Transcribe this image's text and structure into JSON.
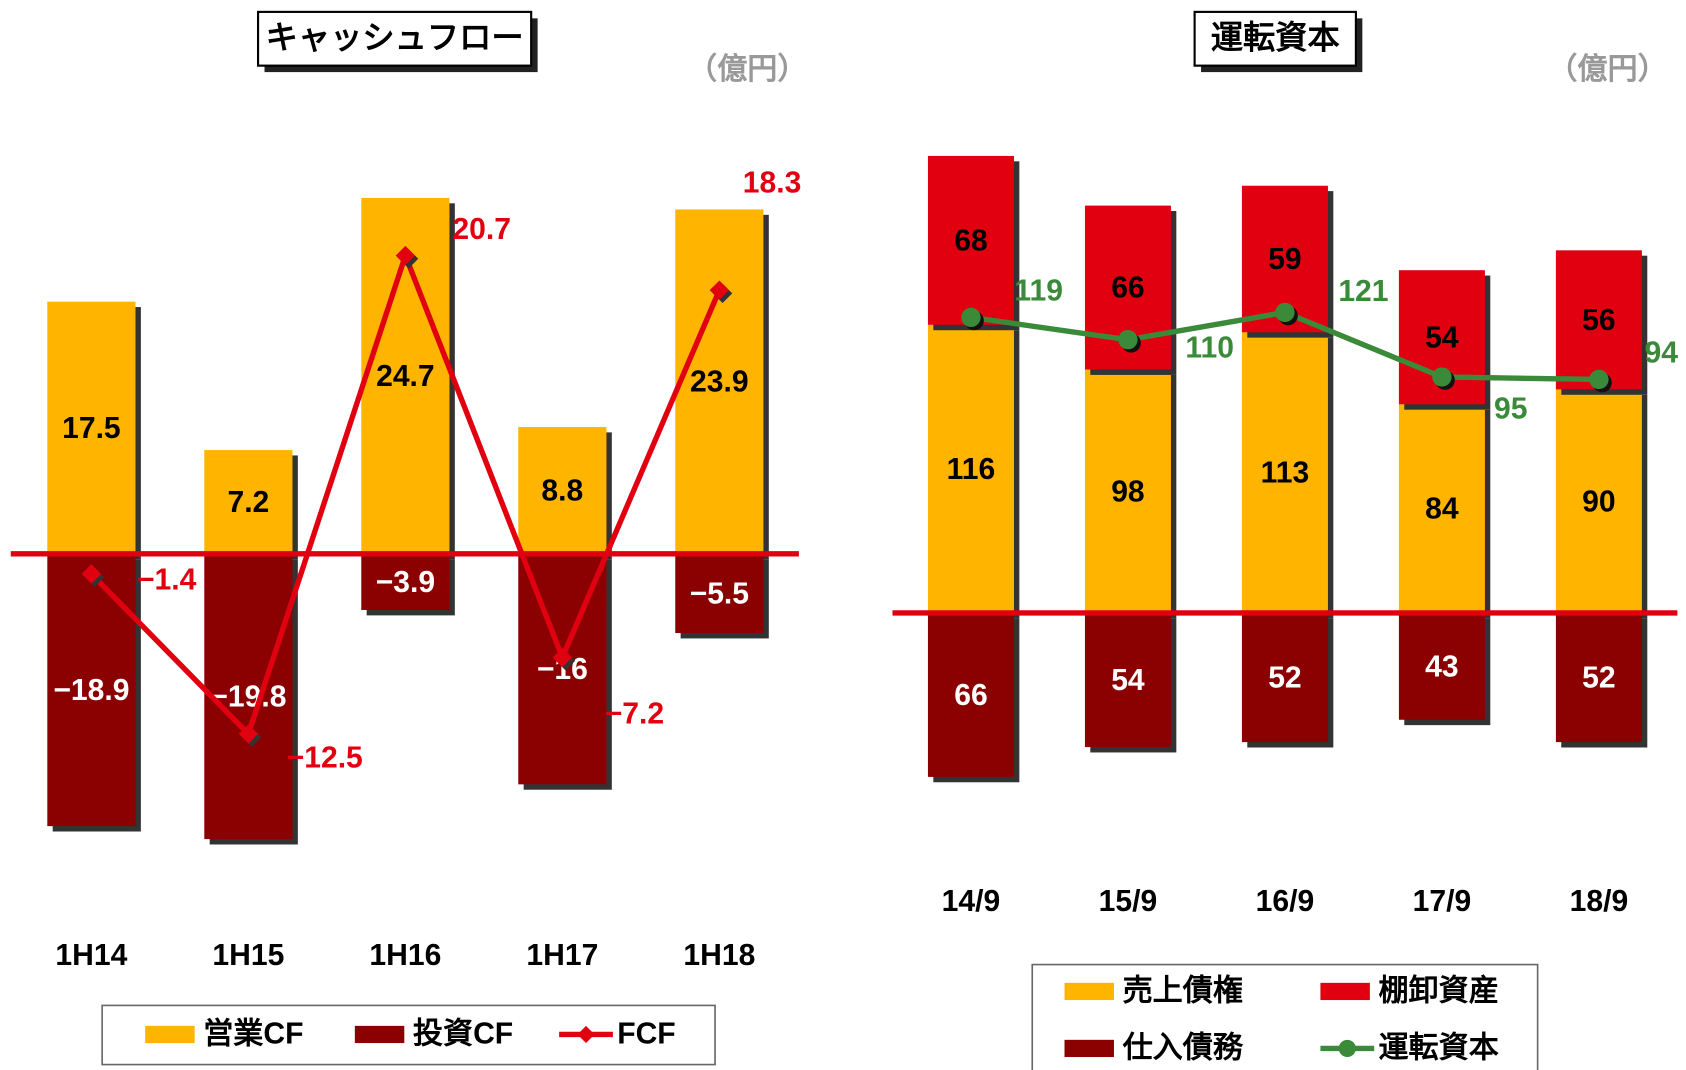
{
  "chart_data": [
    {
      "type": "bar",
      "stacked": true,
      "title": "キャッシュフロー",
      "unit": "（億円）",
      "categories": [
        "1H14",
        "1H15",
        "1H16",
        "1H17",
        "1H18"
      ],
      "series": [
        {
          "name": "営業CF",
          "type": "bar",
          "color": "#FFB400",
          "label_color": "#000000",
          "values": [
            17.5,
            7.2,
            24.7,
            8.8,
            23.9
          ]
        },
        {
          "name": "投資CF",
          "type": "bar",
          "color": "#8B0000",
          "label_color": "#FFFFFF",
          "values": [
            -18.9,
            -19.8,
            -3.9,
            -16,
            -5.5
          ],
          "value_labels": [
            "−18.9",
            "−19.8",
            "−3.9",
            "−16",
            "−5.5"
          ]
        },
        {
          "name": "FCF",
          "type": "line",
          "marker": "diamond",
          "color": "#E00010",
          "label_color": "#E00010",
          "values": [
            -1.4,
            -12.5,
            20.7,
            -7.2,
            18.3
          ],
          "value_labels": [
            "−1.4",
            "−12.5",
            "20.7",
            "−7.2",
            "18.3"
          ]
        }
      ]
    },
    {
      "type": "bar",
      "stacked": true,
      "title": "運転資本",
      "unit": "（億円）",
      "categories": [
        "14/9",
        "15/9",
        "16/9",
        "17/9",
        "18/9"
      ],
      "series": [
        {
          "name": "売上債権",
          "type": "bar",
          "color": "#FFB400",
          "label_color": "#000000",
          "values": [
            116,
            98,
            113,
            84,
            90
          ]
        },
        {
          "name": "棚卸資産",
          "type": "bar",
          "color": "#E00010",
          "label_color": "#000000",
          "values": [
            68,
            66,
            59,
            54,
            56
          ]
        },
        {
          "name": "仕入債務",
          "type": "bar",
          "color": "#8B0000",
          "label_color": "#FFFFFF",
          "values": [
            -66,
            -54,
            -52,
            -43,
            -52
          ],
          "value_labels": [
            "66",
            "54",
            "52",
            "43",
            "52"
          ]
        },
        {
          "name": "運転資本",
          "type": "line",
          "marker": "circle",
          "color": "#3A8A3A",
          "label_color": "#3A8A3A",
          "values": [
            119,
            110,
            121,
            95,
            94
          ]
        }
      ]
    }
  ]
}
